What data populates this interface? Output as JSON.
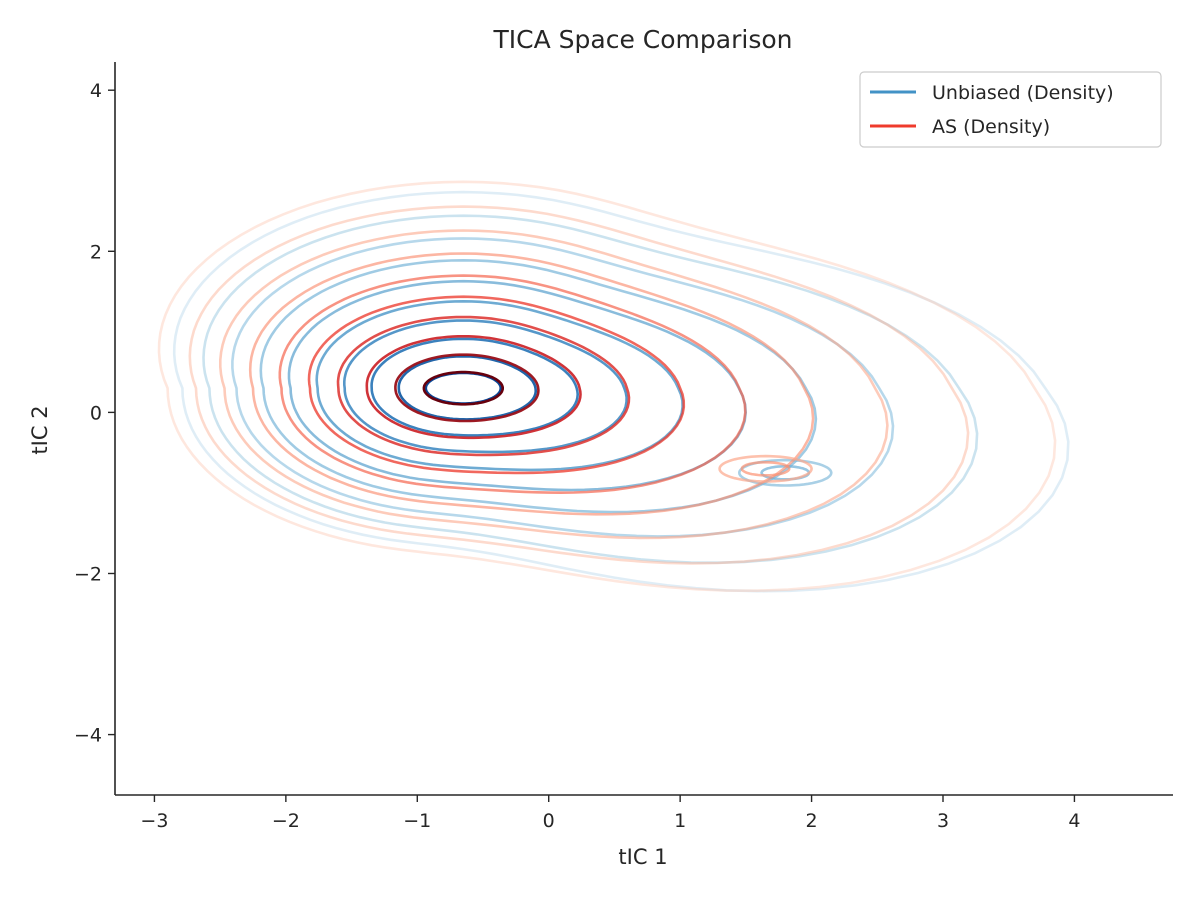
{
  "chart_data": {
    "type": "contour",
    "title": "TICA Space Comparison",
    "xlabel": "tIC 1",
    "ylabel": "tIC 2",
    "xlim": [
      -3.3,
      4.75
    ],
    "ylim": [
      -4.75,
      4.35
    ],
    "xticks": [
      -3,
      -2,
      -1,
      0,
      1,
      2,
      3,
      4
    ],
    "yticks": [
      -4,
      -2,
      0,
      2,
      4
    ],
    "xtick_labels": [
      "−3",
      "−2",
      "−1",
      "0",
      "1",
      "2",
      "3",
      "4"
    ],
    "ytick_labels": [
      "−4",
      "−2",
      "0",
      "2",
      "4"
    ],
    "grid": false,
    "legend_position": "top-right",
    "series": [
      {
        "name": "Unbiased (Density)",
        "kind": "density-contours",
        "colormap": "Blues",
        "legend_color": "#4292c6",
        "levels": 10,
        "modes": [
          {
            "x": -0.65,
            "y": 0.3,
            "weight": 1.0
          },
          {
            "x": 1.8,
            "y": -0.75,
            "weight": 0.18
          }
        ]
      },
      {
        "name": "AS (Density)",
        "kind": "density-contours",
        "colormap": "Reds",
        "legend_color": "#ef3b2c",
        "levels": 10,
        "modes": [
          {
            "x": -0.65,
            "y": 0.3,
            "weight": 1.0
          },
          {
            "x": 1.65,
            "y": -0.7,
            "weight": 0.12
          }
        ]
      }
    ]
  }
}
